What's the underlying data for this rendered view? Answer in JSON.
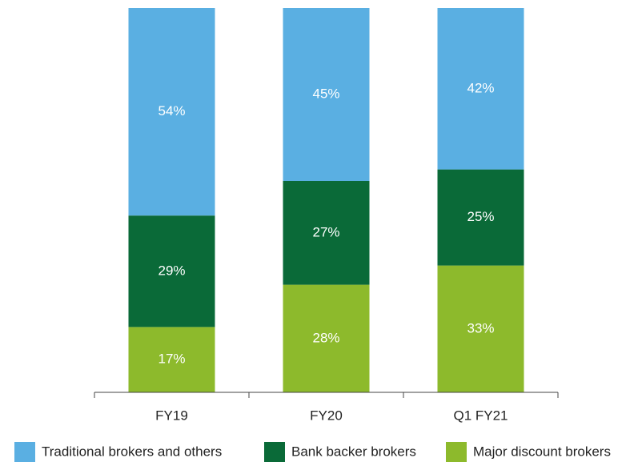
{
  "chart_data": {
    "type": "stacked-bar",
    "categories": [
      "FY19",
      "FY20",
      "Q1 FY21"
    ],
    "series": [
      {
        "name": "Traditional brokers and others",
        "color": "#5aafe2",
        "values": [
          54,
          45,
          42
        ],
        "value_labels": [
          "54%",
          "45%",
          "42%"
        ]
      },
      {
        "name": "Bank backer brokers",
        "color": "#0a6a38",
        "values": [
          29,
          27,
          25
        ],
        "value_labels": [
          "29%",
          "27%",
          "25%"
        ]
      },
      {
        "name": "Major discount brokers",
        "color": "#8dba2c",
        "values": [
          17,
          28,
          33
        ],
        "value_labels": [
          "17%",
          "28%",
          "33%"
        ]
      }
    ],
    "ylim": [
      0,
      100
    ]
  }
}
